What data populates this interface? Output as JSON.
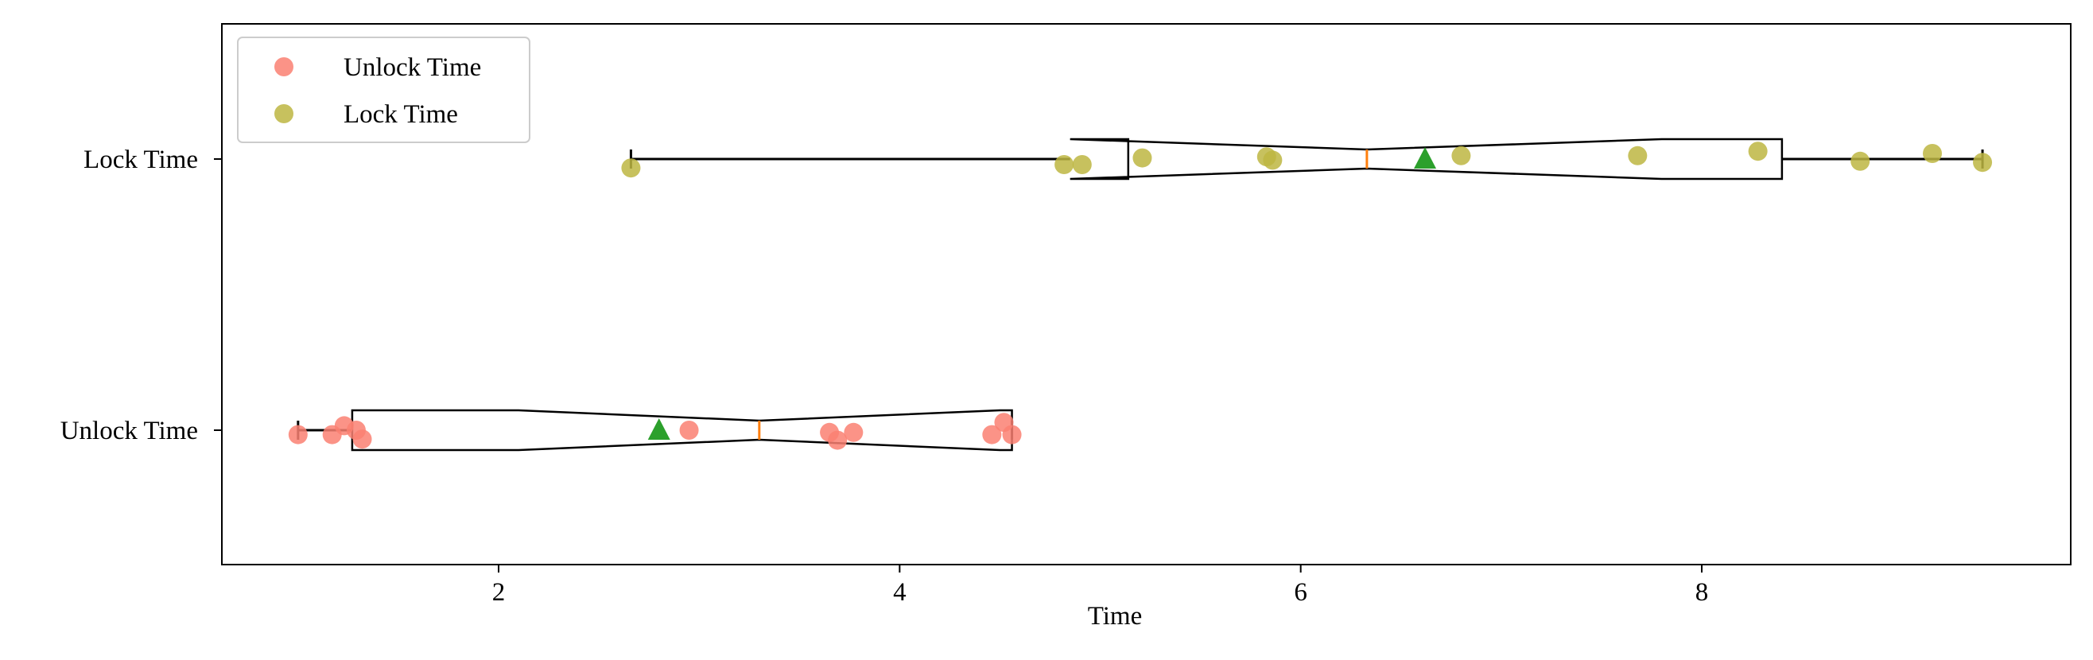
{
  "chart_data": {
    "type": "boxplot",
    "orientation": "horizontal",
    "notched": true,
    "show_means": true,
    "xlabel": "Time",
    "ylabel": "",
    "xlim": [
      0.62,
      9.84
    ],
    "x_ticks": [
      2,
      4,
      6,
      8
    ],
    "categories": [
      "Unlock Time",
      "Lock Time"
    ],
    "grid": false,
    "legend": {
      "position": "top-left",
      "entries": [
        "Unlock Time",
        "Lock Time"
      ]
    },
    "colors": {
      "unlock_points": "#fa8072",
      "lock_points": "#bdb642",
      "median_line": "#ff7f0e",
      "mean_marker": "#2ca02c",
      "box": "#000000"
    },
    "series": [
      {
        "name": "Unlock Time",
        "category_index": 0,
        "box": {
          "whisker_low": 1.0,
          "q1": 1.27,
          "notch_low": 2.1,
          "median": 3.3,
          "notch_high": 4.5,
          "q3": 4.56,
          "whisker_high": 4.56,
          "mean": 2.8
        },
        "points": [
          {
            "x": 1.0,
            "y": -0.04
          },
          {
            "x": 1.17,
            "y": -0.04
          },
          {
            "x": 1.23,
            "y": 0.04
          },
          {
            "x": 1.29,
            "y": 0.0
          },
          {
            "x": 1.32,
            "y": -0.08
          },
          {
            "x": 2.95,
            "y": 0.0
          },
          {
            "x": 3.65,
            "y": -0.02
          },
          {
            "x": 3.69,
            "y": -0.09
          },
          {
            "x": 3.77,
            "y": -0.02
          },
          {
            "x": 4.46,
            "y": -0.04
          },
          {
            "x": 4.52,
            "y": 0.07
          },
          {
            "x": 4.56,
            "y": -0.04
          }
        ]
      },
      {
        "name": "Lock Time",
        "category_index": 1,
        "box": {
          "whisker_low": 2.66,
          "notch_low": 4.85,
          "q1": 5.14,
          "median": 6.33,
          "notch_high": 7.8,
          "q3": 8.4,
          "whisker_high": 9.4,
          "mean": 6.62
        },
        "points": [
          {
            "x": 2.66,
            "y": -0.08
          },
          {
            "x": 4.82,
            "y": -0.05
          },
          {
            "x": 4.91,
            "y": -0.05
          },
          {
            "x": 5.21,
            "y": 0.01
          },
          {
            "x": 5.83,
            "y": 0.02
          },
          {
            "x": 5.86,
            "y": -0.01
          },
          {
            "x": 6.8,
            "y": 0.03
          },
          {
            "x": 7.68,
            "y": 0.03
          },
          {
            "x": 8.28,
            "y": 0.07
          },
          {
            "x": 8.79,
            "y": -0.02
          },
          {
            "x": 9.15,
            "y": 0.05
          },
          {
            "x": 9.4,
            "y": -0.03
          }
        ]
      }
    ]
  }
}
